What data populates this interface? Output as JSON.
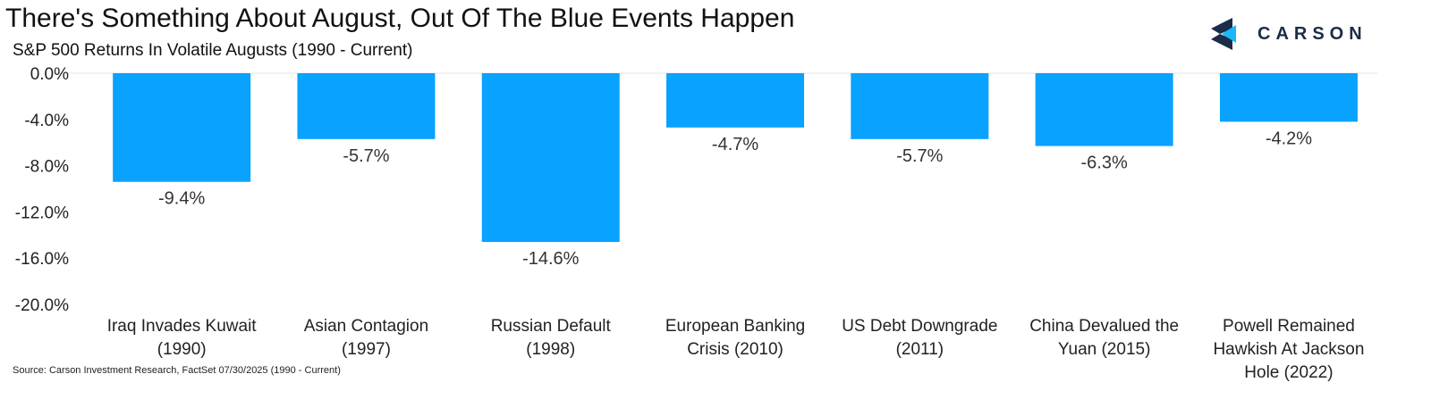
{
  "header": {
    "title": "There's Something About August, Out Of The Blue Events Happen",
    "subtitle": "S&P 500 Returns In Volatile Augusts (1990 - Current)"
  },
  "logo": {
    "text": "CARSON"
  },
  "footer": {
    "source": "Source: Carson Investment Research, FactSet 07/30/2025 (1990 - Current)"
  },
  "colors": {
    "bar": "#0aa2ff",
    "logo_dark": "#1b2c49",
    "logo_light": "#19b7ff"
  },
  "chart_data": {
    "type": "bar",
    "categories": [
      [
        "Iraq Invades Kuwait",
        "(1990)"
      ],
      [
        "Asian Contagion",
        "(1997)"
      ],
      [
        "Russian Default",
        "(1998)"
      ],
      [
        "European Banking",
        "Crisis (2010)"
      ],
      [
        "US Debt Downgrade",
        "(2011)"
      ],
      [
        "China Devalued the",
        "Yuan (2015)"
      ],
      [
        "Powell Remained",
        "Hawkish At Jackson",
        "Hole (2022)"
      ]
    ],
    "values": [
      -9.4,
      -5.7,
      -14.6,
      -4.7,
      -5.7,
      -6.3,
      -4.2
    ],
    "data_labels": [
      "-9.4%",
      "-5.7%",
      "-14.6%",
      "-4.7%",
      "-5.7%",
      "-6.3%",
      "-4.2%"
    ],
    "y_ticks": [
      0,
      -4,
      -8,
      -12,
      -16,
      -20
    ],
    "y_tick_labels": [
      "0.0%",
      "-4.0%",
      "-8.0%",
      "-12.0%",
      "-16.0%",
      "-20.0%"
    ],
    "ylim": [
      -20,
      0
    ],
    "grid": false
  }
}
